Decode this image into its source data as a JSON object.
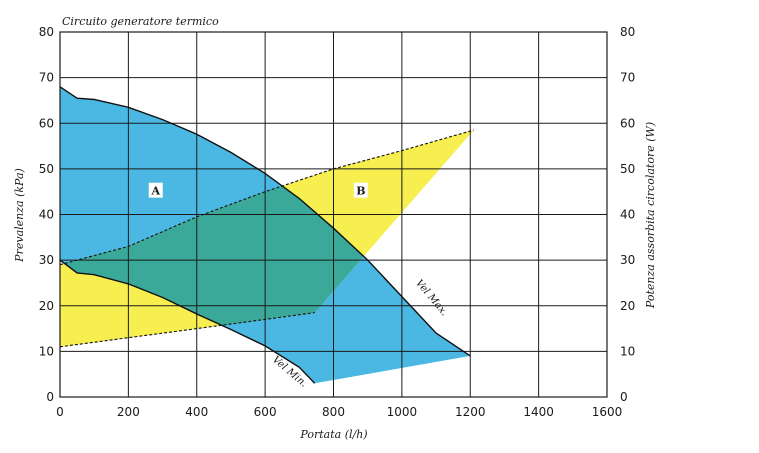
{
  "chart_data": {
    "type": "area",
    "title": "Circuito generatore termico",
    "xlabel": "Portata (l/h)",
    "ylabel_left": "Prevalenza (kPa)",
    "ylabel_right": "Potenza assorbita circolatore (W)",
    "xlim": [
      0,
      1600
    ],
    "ylim": [
      0,
      80
    ],
    "x_ticks": [
      0,
      200,
      400,
      600,
      800,
      1000,
      1200,
      1400,
      1600
    ],
    "y_ticks": [
      0,
      10,
      20,
      30,
      40,
      50,
      60,
      70,
      80
    ],
    "grid": true,
    "colors": {
      "pressure_area": "#4ab8e3",
      "power_area": "#f6ef4f",
      "overlap": "#3aa99a",
      "line": "#1a1a1a"
    },
    "regions": {
      "A": {
        "label": "A",
        "label_pos": [
          280,
          45
        ],
        "vel_max": [
          [
            0,
            68
          ],
          [
            50,
            65.5
          ],
          [
            100,
            65.2
          ],
          [
            200,
            63.5
          ],
          [
            300,
            60.8
          ],
          [
            400,
            57.6
          ],
          [
            500,
            53.6
          ],
          [
            600,
            49
          ],
          [
            700,
            43.5
          ],
          [
            800,
            37
          ],
          [
            900,
            30
          ],
          [
            1000,
            22
          ],
          [
            1100,
            14
          ],
          [
            1200,
            9
          ]
        ],
        "vel_min": [
          [
            0,
            30
          ],
          [
            50,
            27.2
          ],
          [
            100,
            26.8
          ],
          [
            200,
            24.8
          ],
          [
            300,
            21.8
          ],
          [
            400,
            18.2
          ],
          [
            500,
            14.8
          ],
          [
            600,
            11.2
          ],
          [
            700,
            6.5
          ],
          [
            745,
            3
          ]
        ]
      },
      "B": {
        "label": "B",
        "label_pos": [
          880,
          45
        ],
        "power_max": [
          [
            0,
            29
          ],
          [
            200,
            33
          ],
          [
            400,
            39.5
          ],
          [
            600,
            45
          ],
          [
            800,
            50
          ],
          [
            1000,
            54
          ],
          [
            1210,
            58.5
          ]
        ],
        "power_min": [
          [
            0,
            11
          ],
          [
            200,
            13
          ],
          [
            400,
            15
          ],
          [
            600,
            17
          ],
          [
            745,
            18.5
          ]
        ]
      }
    },
    "curve_labels": [
      {
        "text": "Vel Max.",
        "x": 1040,
        "y": 25,
        "angle": 50
      },
      {
        "text": "Vel Min.",
        "x": 620,
        "y": 8,
        "angle": 40
      }
    ]
  }
}
